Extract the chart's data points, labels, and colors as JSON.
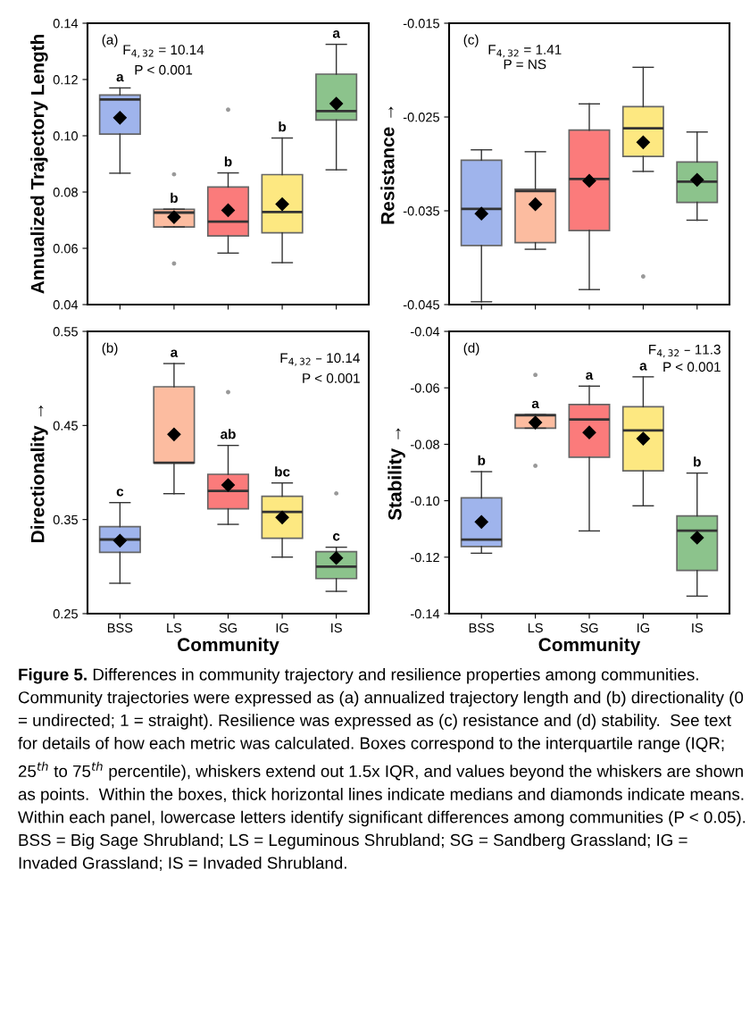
{
  "chart_data": [
    {
      "type": "box",
      "ylabel": "Annualized Trajectory Length",
      "categories": [
        "BSS",
        "LS",
        "SG",
        "IG",
        "IS"
      ],
      "colors": [
        "#9fb4ec",
        "#fcbca0",
        "#fb7b7b",
        "#fde881",
        "#8cc38c"
      ],
      "ylim": [
        0.04,
        0.14
      ],
      "yticks": [
        {
          "value": 0.04,
          "label": "0.04"
        },
        {
          "value": 0.06,
          "label": "0.06"
        },
        {
          "value": 0.08,
          "label": "0.08"
        },
        {
          "value": 0.1,
          "label": "0.10"
        },
        {
          "value": 0.12,
          "label": "0.12"
        },
        {
          "value": 0.14,
          "label": "0.14"
        }
      ],
      "tick_labels": "y",
      "grid": false,
      "marker": "diamond",
      "boxes": [
        {
          "low": 0.0867,
          "q1": 0.1006,
          "median": 0.1129,
          "q3": 0.1145,
          "high": 0.117,
          "mean": 0.1064
        },
        {
          "low": 0.0676,
          "q1": 0.0676,
          "median": 0.0727,
          "q3": 0.0739,
          "high": 0.0739,
          "mean": 0.0711,
          "outliers": [
            0.0863,
            0.0546
          ]
        },
        {
          "low": 0.0583,
          "q1": 0.0644,
          "median": 0.0695,
          "q3": 0.0818,
          "high": 0.0868,
          "mean": 0.0735,
          "outliers": [
            0.1093
          ]
        },
        {
          "low": 0.0549,
          "q1": 0.0655,
          "median": 0.0729,
          "q3": 0.0862,
          "high": 0.0992,
          "mean": 0.0757
        },
        {
          "low": 0.0879,
          "q1": 0.1056,
          "median": 0.1088,
          "q3": 0.1219,
          "high": 0.1325,
          "mean": 0.1114
        }
      ],
      "annotations": [
        "(a)",
        "F$_{4,32}$ = 10.14",
        "P < 0.001",
        {
          "text": "a",
          "x": "BSS",
          "y": 0.117
        },
        {
          "text": "b",
          "x": "LS",
          "y": 0.0739
        },
        {
          "text": "b",
          "x": "SG",
          "y": 0.0868
        },
        {
          "text": "b",
          "x": "IG",
          "y": 0.0992
        },
        {
          "text": "a",
          "x": "IS",
          "y": 0.1325
        }
      ]
    },
    {
      "type": "box",
      "ylabel": "Resistance →",
      "categories": [
        "BSS",
        "LS",
        "SG",
        "IG",
        "IS"
      ],
      "colors": [
        "#9fb4ec",
        "#fcbca0",
        "#fb7b7b",
        "#fde881",
        "#8cc38c"
      ],
      "ylim": [
        -0.045,
        -0.015
      ],
      "yticks": [
        -0.045,
        -0.035,
        -0.025,
        -0.015
      ],
      "tick_labels": "y",
      "grid": false,
      "marker": "diamond",
      "boxes": [
        {
          "low": -0.0447,
          "q1": -0.0387,
          "median": -0.0348,
          "q3": -0.0296,
          "high": -0.0285,
          "mean": -0.0353
        },
        {
          "low": -0.0391,
          "q1": -0.0384,
          "median": -0.0329,
          "q3": -0.0327,
          "high": -0.0287,
          "mean": -0.0343
        },
        {
          "low": -0.0434,
          "q1": -0.0371,
          "median": -0.0316,
          "q3": -0.0264,
          "high": -0.0236,
          "mean": -0.0318
        },
        {
          "low": -0.0308,
          "q1": -0.0292,
          "median": -0.0262,
          "q3": -0.0239,
          "high": -0.0197,
          "mean": -0.0277,
          "outliers": [
            -0.042
          ]
        },
        {
          "low": -0.036,
          "q1": -0.0341,
          "median": -0.0319,
          "q3": -0.0298,
          "high": -0.0266,
          "mean": -0.0317
        }
      ],
      "annotations": [
        "(c)",
        "F$_{4,32}$ = 1.41",
        "P = NS"
      ]
    },
    {
      "type": "box",
      "xlabel": "Community",
      "ylabel": "Directionality →",
      "categories": [
        "BSS",
        "LS",
        "SG",
        "IG",
        "IS"
      ],
      "colors": [
        "#9fb4ec",
        "#fcbca0",
        "#fb7b7b",
        "#fde881",
        "#8cc38c"
      ],
      "ylim": [
        0.25,
        0.55
      ],
      "yticks": [
        0.25,
        0.35,
        0.45,
        0.55
      ],
      "grid": false,
      "marker": "diamond",
      "boxes": [
        {
          "low": 0.2823,
          "q1": 0.3152,
          "median": 0.3288,
          "q3": 0.3424,
          "high": 0.368,
          "mean": 0.3275
        },
        {
          "low": 0.3775,
          "q1": 0.4104,
          "median": 0.4104,
          "q3": 0.4911,
          "high": 0.5158,
          "mean": 0.4405
        },
        {
          "low": 0.3449,
          "q1": 0.3614,
          "median": 0.3804,
          "q3": 0.3981,
          "high": 0.4288,
          "mean": 0.3867,
          "outliers": [
            0.4854
          ]
        },
        {
          "low": 0.3101,
          "q1": 0.3301,
          "median": 0.3582,
          "q3": 0.3747,
          "high": 0.3889,
          "mean": 0.3522
        },
        {
          "low": 0.2737,
          "q1": 0.2873,
          "median": 0.3,
          "q3": 0.3158,
          "high": 0.3206,
          "mean": 0.3092,
          "outliers": [
            0.3778
          ]
        }
      ],
      "annotations": [
        "(b)",
        "F$_{4,32}$ – 10.14",
        "P < 0.001",
        {
          "text": "c",
          "x": "BSS",
          "y": 0.368
        },
        {
          "text": "a",
          "x": "LS",
          "y": 0.5158
        },
        {
          "text": "ab",
          "x": "SG",
          "y": 0.4288
        },
        {
          "text": "bc",
          "x": "IG",
          "y": 0.3889
        },
        {
          "text": "c",
          "x": "IS",
          "y": 0.3206
        }
      ]
    },
    {
      "type": "box",
      "xlabel": "Community",
      "ylabel": "Stability →",
      "categories": [
        "BSS",
        "LS",
        "SG",
        "IG",
        "IS"
      ],
      "colors": [
        "#9fb4ec",
        "#fcbca0",
        "#fb7b7b",
        "#fde881",
        "#8cc38c"
      ],
      "ylim": [
        -0.14,
        -0.04
      ],
      "yticks": [
        {
          "value": -0.14,
          "label": "-0.14"
        },
        {
          "value": -0.12,
          "label": "-0.12"
        },
        {
          "value": -0.1,
          "label": "-0.10"
        },
        {
          "value": -0.08,
          "label": "-0.08"
        },
        {
          "value": -0.06,
          "label": "-0.06"
        },
        {
          "value": -0.04,
          "label": "-0.04"
        }
      ],
      "grid": false,
      "marker": "diamond",
      "boxes": [
        {
          "low": -0.1186,
          "q1": -0.1162,
          "median": -0.1138,
          "q3": -0.099,
          "high": -0.0897,
          "mean": -0.1075
        },
        {
          "low": -0.0743,
          "q1": -0.0743,
          "median": -0.0697,
          "q3": -0.0695,
          "high": -0.0695,
          "mean": -0.0723,
          "outliers": [
            -0.0554,
            -0.0876
          ]
        },
        {
          "low": -0.1107,
          "q1": -0.0846,
          "median": -0.0712,
          "q3": -0.0659,
          "high": -0.0594,
          "mean": -0.0758
        },
        {
          "low": -0.1018,
          "q1": -0.0894,
          "median": -0.0751,
          "q3": -0.0667,
          "high": -0.0561,
          "mean": -0.078
        },
        {
          "low": -0.1338,
          "q1": -0.1247,
          "median": -0.1106,
          "q3": -0.1054,
          "high": -0.0902,
          "mean": -0.1131
        }
      ],
      "annotations": [
        "(d)",
        "F$_{4,32}$ – 11.3",
        "P < 0.001",
        {
          "text": "b",
          "x": "BSS",
          "y": -0.0897
        },
        {
          "text": "a",
          "x": "LS",
          "y": -0.0695
        },
        {
          "text": "a",
          "x": "SG",
          "y": -0.0594
        },
        {
          "text": "a",
          "x": "IG",
          "y": -0.0561
        },
        {
          "text": "b",
          "x": "IS",
          "y": -0.0902
        }
      ]
    },
    {
      "type": "other",
      "annotations": [
        "Figure 5.",
        "Differences in community trajectory and resilience properties among communities. Community trajectories were expressed as (a) annualized trajectory length and (b) directionality (0 = undirected; 1 = straight). Resilience was expressed as (c) resistance and (d) stability.  See text for details of how each metric was calculated. Boxes correspond to the interquartile range (IQR; 25$^{th}$ to 75$^{th}$ percentile), whiskers extend out 1.5x IQR, and values beyond the whiskers are shown as points.  Within the boxes, thick horizontal lines indicate medians and diamonds indicate means.  Within each panel, lowercase letters identify significant differences among communities (P < 0.05). BSS = Big Sage Shrubland; LS = Leguminous Shrubland; SG = Sandberg Grassland; IG = Invaded Grassland; IS = Invaded Shrubland."
      ]
    }
  ]
}
